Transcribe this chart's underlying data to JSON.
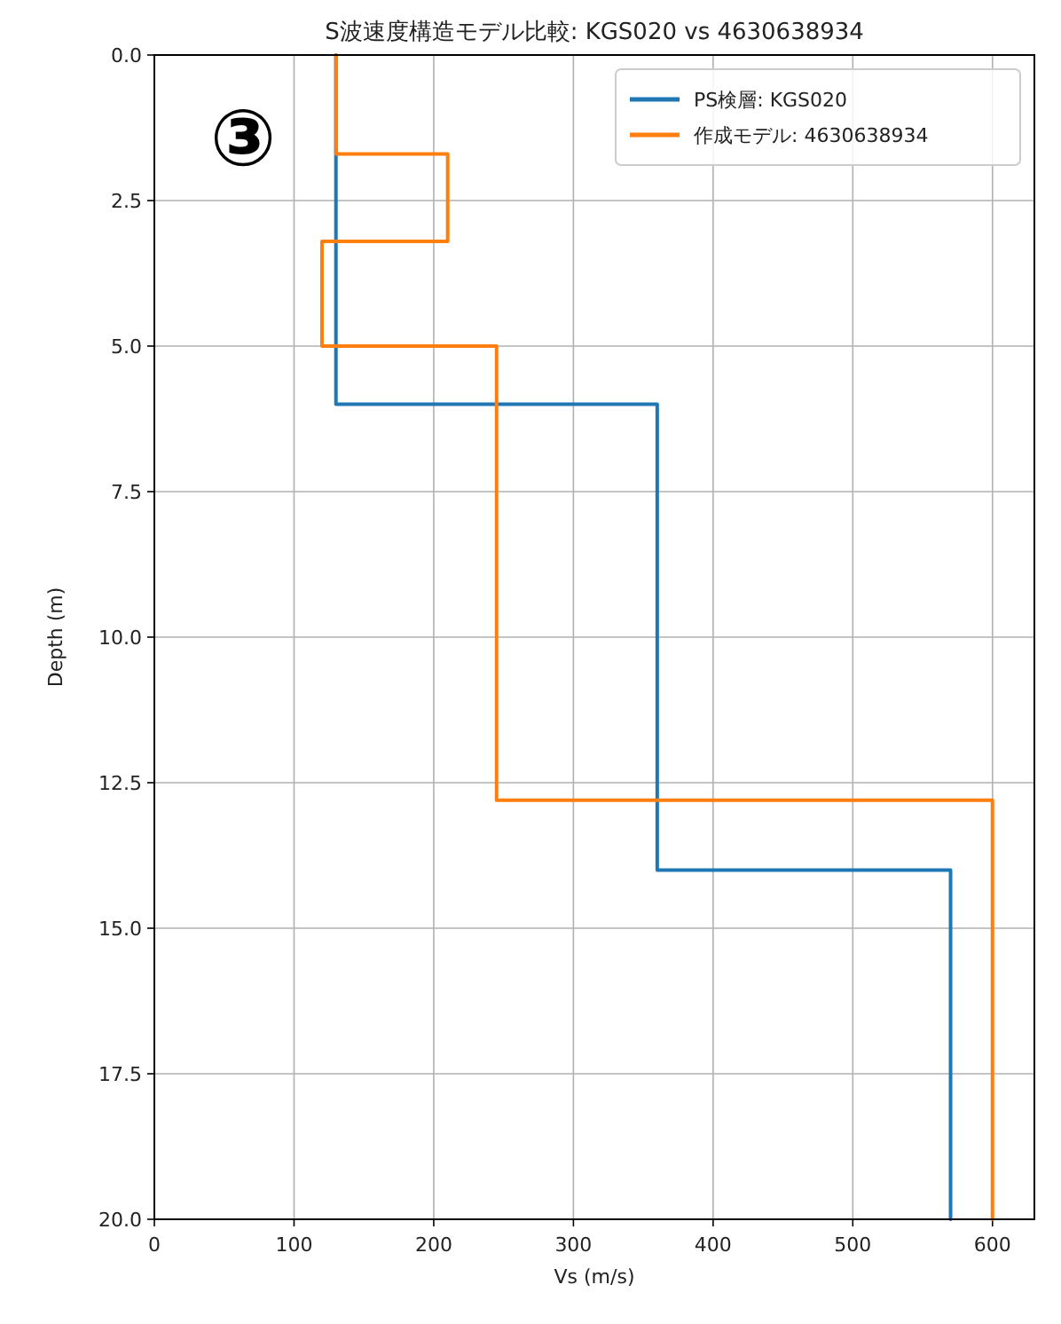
{
  "chart_data": {
    "type": "line",
    "title": "S波速度構造モデル比較: KGS020 vs 4630638934",
    "xlabel": "Vs (m/s)",
    "ylabel": "Depth (m)",
    "annotations": [
      "③"
    ],
    "series": [
      {
        "name": "PS検層: KGS020",
        "color": "#1f77b4",
        "x": [
          130,
          130,
          360,
          360,
          570,
          570
        ],
        "values": [
          0,
          6.0,
          6.0,
          14.0,
          14.0,
          20
        ]
      },
      {
        "name": "作成モデル: 4630638934",
        "color": "#ff7f0e",
        "x": [
          130,
          130,
          210,
          210,
          120,
          120,
          245,
          245,
          600,
          600
        ],
        "values": [
          0,
          1.7,
          1.7,
          3.2,
          3.2,
          5.0,
          5.0,
          12.8,
          12.8,
          20
        ]
      }
    ],
    "xlim": [
      0,
      630
    ],
    "xticks": [
      0,
      100,
      200,
      300,
      400,
      500,
      600
    ],
    "ylim": [
      20,
      0
    ],
    "yticks": [
      {
        "value": 0,
        "label": "0.0"
      },
      {
        "value": 2.5,
        "label": "2.5"
      },
      {
        "value": 5,
        "label": "5.0"
      },
      {
        "value": 7.5,
        "label": "7.5"
      },
      {
        "value": 10,
        "label": "10.0"
      },
      {
        "value": 12.5,
        "label": "12.5"
      },
      {
        "value": 15,
        "label": "15.0"
      },
      {
        "value": 17.5,
        "label": "17.5"
      },
      {
        "value": 20,
        "label": "20.0"
      }
    ],
    "grid": true,
    "legend": "top right",
    "marker": "none",
    "line_style": "solid"
  }
}
